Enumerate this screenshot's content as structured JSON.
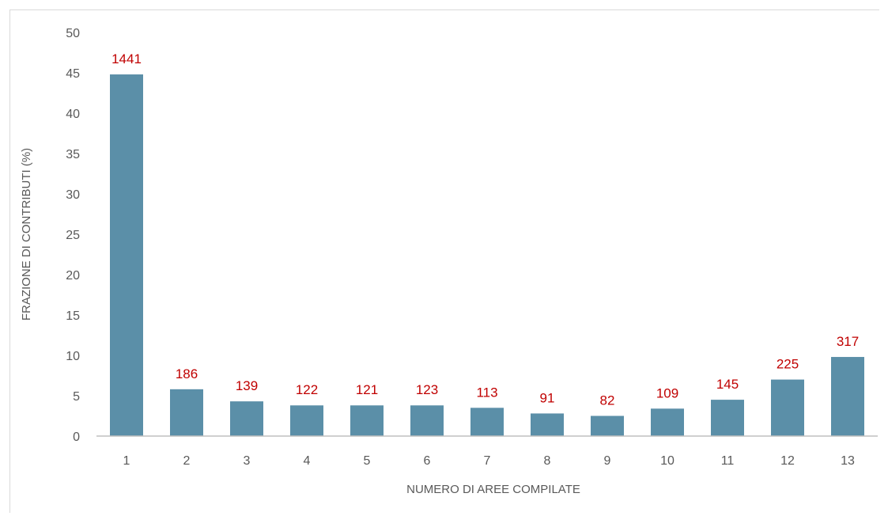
{
  "chart_data": {
    "type": "bar",
    "title": "",
    "xlabel": "NUMERO DI AREE COMPILATE",
    "ylabel": "FRAZIONE DI CONTRIBUTI (%)",
    "ylim": [
      0,
      50
    ],
    "yticks": [
      0,
      5,
      10,
      15,
      20,
      25,
      30,
      35,
      40,
      45,
      50
    ],
    "categories": [
      "1",
      "2",
      "3",
      "4",
      "5",
      "6",
      "7",
      "8",
      "9",
      "10",
      "11",
      "12",
      "13"
    ],
    "values": [
      44.8,
      5.8,
      4.3,
      3.8,
      3.8,
      3.8,
      3.5,
      2.8,
      2.5,
      3.4,
      4.5,
      7.0,
      9.8
    ],
    "data_labels": [
      "1441",
      "186",
      "139",
      "122",
      "121",
      "123",
      "113",
      "91",
      "82",
      "109",
      "145",
      "225",
      "317"
    ],
    "grid": false,
    "legend": "none",
    "colors": {
      "bar": "#5b8fa8",
      "data_label": "#c00000",
      "axis_line": "#bfbfbf",
      "text": "#595959"
    }
  }
}
